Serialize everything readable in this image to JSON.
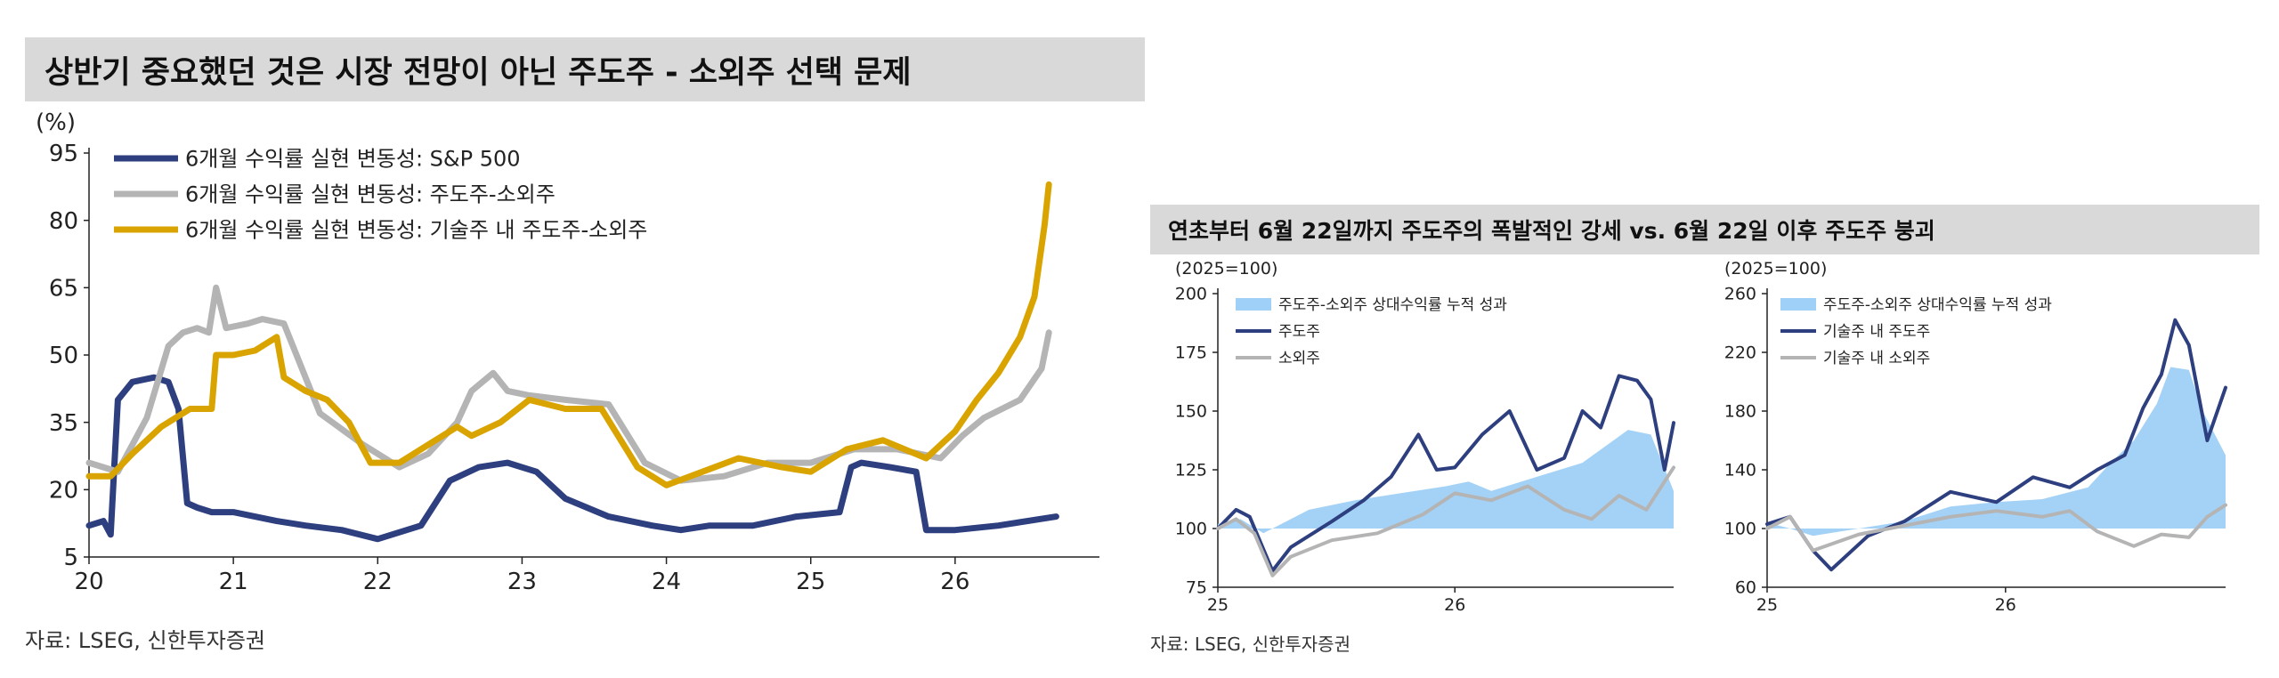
{
  "left_panel": {
    "title": "상반기 중요했던 것은 시장 전망이 아닌 주도주 - 소외주 선택 문제",
    "unit": "(%)",
    "source": "자료: LSEG, 신한투자증권"
  },
  "right_panel": {
    "title": "연초부터 6월 22일까지 주도주의 폭발적인 강세 vs. 6월 22일 이후 주도주 붕괴",
    "source": "자료: LSEG, 신한투자증권"
  },
  "colors": {
    "navy": "#2e3f7f",
    "gray": "#b4b4b4",
    "gold": "#d9a400",
    "lightblue": "#9fd0f7"
  },
  "chart_data": [
    {
      "id": "left",
      "type": "line",
      "ylabel": "(%)",
      "ylim": [
        5,
        95
      ],
      "yticks": [
        5,
        20,
        35,
        50,
        65,
        80,
        95
      ],
      "xlim": [
        20,
        27
      ],
      "xticks": [
        20,
        21,
        22,
        23,
        24,
        25,
        26
      ],
      "grid": false,
      "legend_position": "top-left",
      "series": [
        {
          "name": "6개월 수익률 실현 변동성: S&P 500",
          "color": "#2e3f7f",
          "x": [
            20,
            20.1,
            20.15,
            20.2,
            20.3,
            20.45,
            20.55,
            20.62,
            20.68,
            20.75,
            20.85,
            21,
            21.3,
            21.5,
            21.75,
            22,
            22.3,
            22.5,
            22.7,
            22.9,
            23.1,
            23.3,
            23.6,
            23.9,
            24.1,
            24.3,
            24.6,
            24.9,
            25.2,
            25.28,
            25.35,
            25.55,
            25.73,
            25.8,
            26,
            26.3,
            26.7
          ],
          "values": [
            12,
            13,
            10,
            40,
            44,
            45,
            44,
            38,
            17,
            16,
            15,
            15,
            13,
            12,
            11,
            9,
            12,
            22,
            25,
            26,
            24,
            18,
            14,
            12,
            11,
            12,
            12,
            14,
            15,
            25,
            26,
            25,
            24,
            11,
            11,
            12,
            14
          ]
        },
        {
          "name": "6개월 수익률 실현 변동성: 주도주-소외주",
          "color": "#b4b4b4",
          "x": [
            20,
            20.2,
            20.4,
            20.55,
            20.65,
            20.75,
            20.83,
            20.88,
            20.95,
            21.1,
            21.2,
            21.35,
            21.6,
            21.9,
            22.15,
            22.35,
            22.55,
            22.65,
            22.8,
            22.9,
            23.05,
            23.3,
            23.6,
            23.85,
            24.1,
            24.4,
            24.7,
            25,
            25.3,
            25.6,
            25.9,
            26.05,
            26.2,
            26.45,
            26.6,
            26.65
          ],
          "values": [
            26,
            24,
            36,
            52,
            55,
            56,
            55,
            65,
            56,
            57,
            58,
            57,
            37,
            30,
            25,
            28,
            35,
            42,
            46,
            42,
            41,
            40,
            39,
            26,
            22,
            23,
            26,
            26,
            29,
            29,
            27,
            32,
            36,
            40,
            47,
            55
          ]
        },
        {
          "name": "6개월 수익률 실현 변동성: 기술주 내 주도주-소외주",
          "color": "#d9a400",
          "x": [
            20,
            20.15,
            20.3,
            20.5,
            20.7,
            20.85,
            20.88,
            21,
            21.15,
            21.3,
            21.35,
            21.5,
            21.65,
            21.8,
            21.95,
            22.15,
            22.35,
            22.55,
            22.65,
            22.85,
            23.05,
            23.3,
            23.55,
            23.8,
            24,
            24.25,
            24.5,
            24.8,
            25,
            25.25,
            25.5,
            25.8,
            26,
            26.15,
            26.3,
            26.45,
            26.55,
            26.62,
            26.65
          ],
          "values": [
            23,
            23,
            28,
            34,
            38,
            38,
            50,
            50,
            51,
            54,
            45,
            42,
            40,
            35,
            26,
            26,
            30,
            34,
            32,
            35,
            40,
            38,
            38,
            25,
            21,
            24,
            27,
            25,
            24,
            29,
            31,
            27,
            33,
            40,
            46,
            54,
            63,
            79,
            88
          ]
        }
      ]
    },
    {
      "id": "right-a",
      "type": "line",
      "ylabel": "(2025=100)",
      "ylim": [
        75,
        200
      ],
      "yticks": [
        75,
        100,
        125,
        150,
        175,
        200
      ],
      "xticks": [
        "25",
        "26"
      ],
      "grid": false,
      "legend_position": "top-left",
      "series": [
        {
          "name": "주도주-소외주 상대수익률 누적 성과",
          "color": "#9fd0f7",
          "x": [
            0,
            0.05,
            0.1,
            0.2,
            0.3,
            0.4,
            0.5,
            0.55,
            0.6,
            0.7,
            0.8,
            0.85,
            0.9,
            0.95,
            1.0
          ],
          "values": [
            102,
            104,
            98,
            108,
            112,
            115,
            118,
            120,
            116,
            122,
            128,
            135,
            142,
            140,
            116
          ]
        },
        {
          "name": "주도주",
          "color": "#2e3f7f",
          "x": [
            0,
            0.04,
            0.07,
            0.12,
            0.16,
            0.25,
            0.32,
            0.38,
            0.44,
            0.48,
            0.52,
            0.58,
            0.64,
            0.7,
            0.76,
            0.8,
            0.84,
            0.88,
            0.92,
            0.95,
            0.98,
            1.0
          ],
          "values": [
            100,
            108,
            105,
            82,
            92,
            103,
            112,
            122,
            140,
            125,
            126,
            140,
            150,
            125,
            130,
            150,
            143,
            165,
            163,
            155,
            125,
            145
          ]
        },
        {
          "name": "소외주",
          "color": "#b4b4b4",
          "x": [
            0,
            0.04,
            0.08,
            0.12,
            0.16,
            0.25,
            0.35,
            0.45,
            0.52,
            0.6,
            0.68,
            0.76,
            0.82,
            0.88,
            0.94,
            1.0
          ],
          "values": [
            100,
            104,
            98,
            80,
            88,
            95,
            98,
            106,
            115,
            112,
            118,
            108,
            104,
            114,
            108,
            126
          ]
        }
      ]
    },
    {
      "id": "right-b",
      "type": "line",
      "ylabel": "(2025=100)",
      "ylim": [
        60,
        260
      ],
      "yticks": [
        60,
        100,
        140,
        180,
        220,
        260
      ],
      "xticks": [
        "25",
        "26"
      ],
      "grid": false,
      "legend_position": "top-left",
      "series": [
        {
          "name": "주도주-소외주 상대수익률 누적 성과",
          "color": "#9fd0f7",
          "x": [
            0,
            0.05,
            0.1,
            0.2,
            0.3,
            0.4,
            0.5,
            0.6,
            0.7,
            0.75,
            0.8,
            0.85,
            0.88,
            0.92,
            0.95,
            1.0
          ],
          "values": [
            104,
            100,
            95,
            100,
            105,
            115,
            118,
            120,
            128,
            145,
            160,
            185,
            210,
            208,
            180,
            150
          ]
        },
        {
          "name": "기술주 내 주도주",
          "color": "#2e3f7f",
          "x": [
            0,
            0.05,
            0.1,
            0.14,
            0.22,
            0.3,
            0.4,
            0.5,
            0.58,
            0.66,
            0.72,
            0.78,
            0.82,
            0.86,
            0.89,
            0.92,
            0.96,
            1.0
          ],
          "values": [
            103,
            108,
            85,
            72,
            95,
            105,
            125,
            118,
            135,
            128,
            140,
            150,
            182,
            205,
            242,
            225,
            160,
            196
          ]
        },
        {
          "name": "기술주 내 소외주",
          "color": "#b4b4b4",
          "x": [
            0,
            0.05,
            0.1,
            0.2,
            0.3,
            0.4,
            0.5,
            0.55,
            0.6,
            0.66,
            0.72,
            0.8,
            0.86,
            0.92,
            0.96,
            1.0
          ],
          "values": [
            100,
            108,
            85,
            96,
            102,
            108,
            112,
            110,
            108,
            112,
            98,
            88,
            96,
            94,
            108,
            116
          ]
        }
      ]
    }
  ]
}
